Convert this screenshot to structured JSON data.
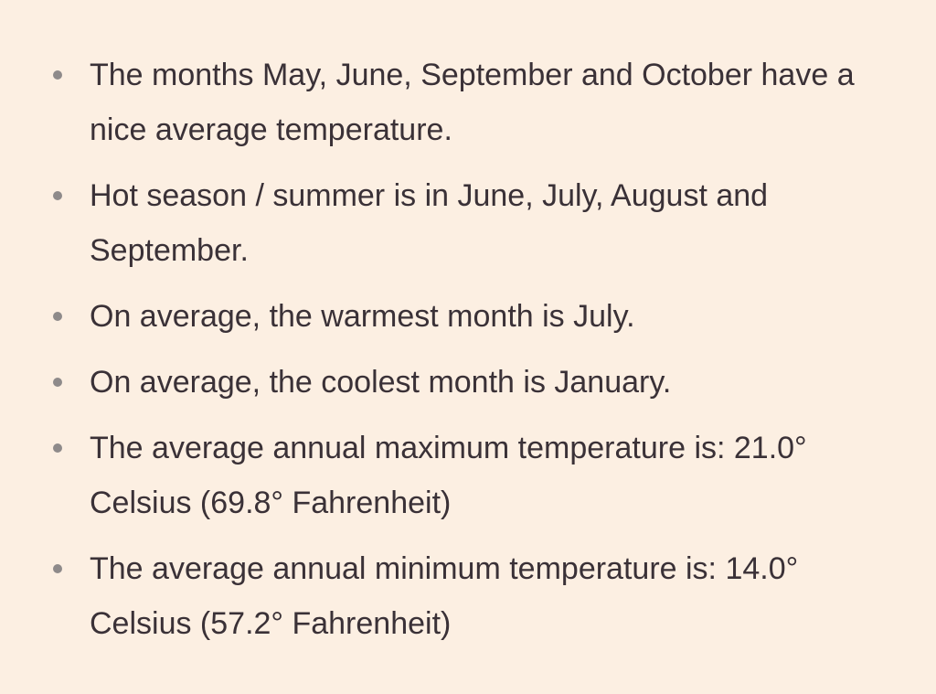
{
  "items": [
    "The months May, June, September and October have a nice average temperature.",
    "Hot season / summer is in June, July, August and September.",
    "On average, the warmest month is July.",
    "On average, the coolest month is January.",
    "The average annual maximum temperature is: 21.0° Celsius (69.8° Fahrenheit)",
    "The average annual minimum temperature is: 14.0° Celsius (57.2° Fahrenheit)"
  ]
}
